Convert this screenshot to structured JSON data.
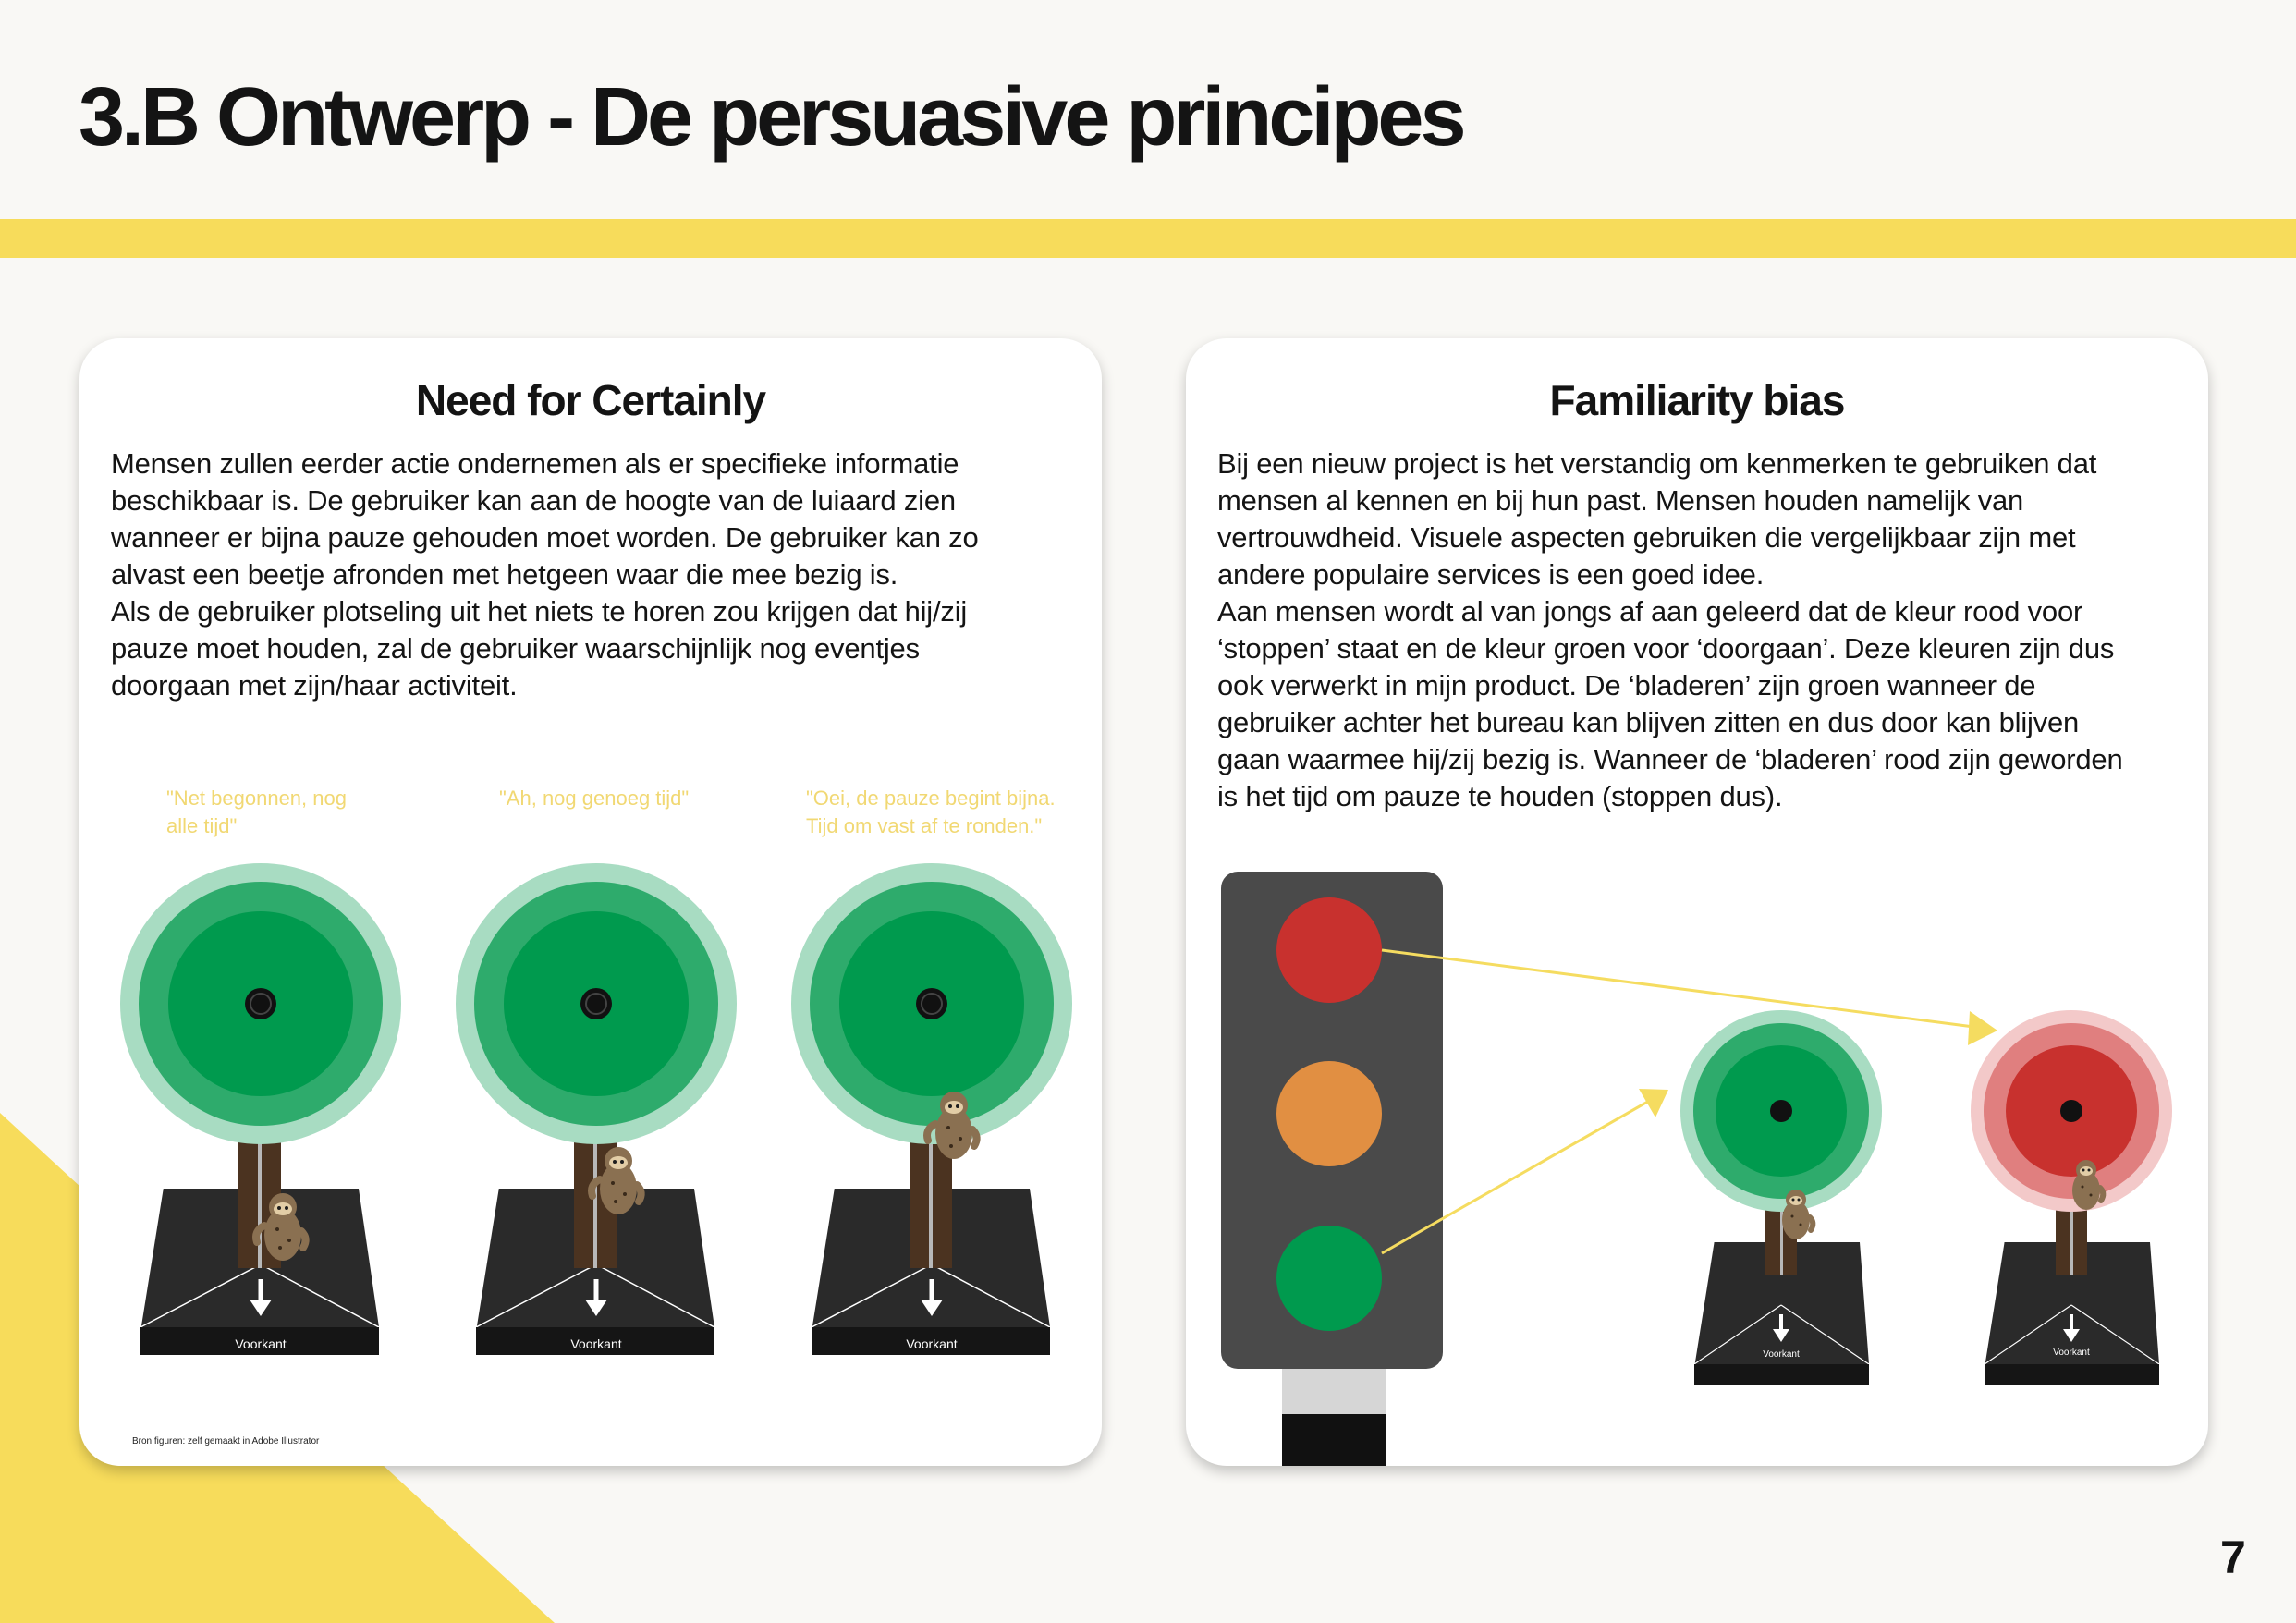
{
  "header": {
    "title": "3.B Ontwerp - De persuasive principes"
  },
  "colors": {
    "accent_yellow": "#f7dc5b",
    "tree_green": "#009a4e",
    "tree_mid": "#2eab6c",
    "tree_light": "#a8dcc2",
    "light_red": "#c8312e",
    "light_orange": "#e18f42",
    "trunk_brown": "#4b3320",
    "base_black": "#2a2a2a"
  },
  "left_card": {
    "title": "Need for Certainly",
    "body": "Mensen zullen eerder actie ondernemen als er specifieke informatie\nbeschikbaar is.  De gebruiker kan aan de hoogte van de luiaard zien\nwanneer er bijna pauze gehouden moet worden. De gebruiker kan zo\nalvast een beetje afronden met hetgeen waar die mee bezig is.\nAls de gebruiker plotseling uit het niets te horen zou krijgen dat hij/zij\npauze moet houden, zal de gebruiker waarschijnlijk nog eventjes\ndoorgaan met zijn/haar activiteit.",
    "figures": [
      {
        "quote": "\"Net begonnen, nog\n  alle tijd\"",
        "base_label": "Voorkant",
        "icon": "sloth-tree-product"
      },
      {
        "quote": "\"Ah, nog genoeg tijd\"",
        "base_label": "Voorkant",
        "icon": "sloth-tree-product"
      },
      {
        "quote": "\"Oei, de pauze begint bijna.\nTijd om vast af te ronden.\"",
        "base_label": "Voorkant",
        "icon": "sloth-tree-product"
      }
    ],
    "source_note": "Bron figuren: zelf gemaakt in Adobe Illustrator"
  },
  "right_card": {
    "title": "Familiarity bias",
    "body": "Bij een nieuw project is het verstandig om kenmerken te gebruiken dat\nmensen al kennen en bij hun past. Mensen houden namelijk van\nvertrouwdheid. Visuele aspecten gebruiken die vergelijkbaar zijn met\nandere populaire services is een goed idee.\nAan mensen wordt al van jongs af aan geleerd dat de kleur rood voor\n‘stoppen’ staat en de kleur groen voor ‘doorgaan’. Deze kleuren zijn dus\nook verwerkt in mijn product. De ‘bladeren’ zijn groen wanneer de\ngebruiker achter het bureau kan blijven zitten en dus door kan blijven\ngaan waarmee hij/zij bezig is. Wanneer de ‘bladeren’ rood zijn geworden\nis het tijd om pauze te houden (stoppen dus).",
    "figures": [
      {
        "base_label": "Voorkant",
        "icon": "green-tree-product"
      },
      {
        "base_label": "Voorkant",
        "icon": "red-tree-product"
      }
    ],
    "traffic_light": {
      "icon": "traffic-light"
    }
  },
  "footer": {
    "page_number": "7"
  }
}
